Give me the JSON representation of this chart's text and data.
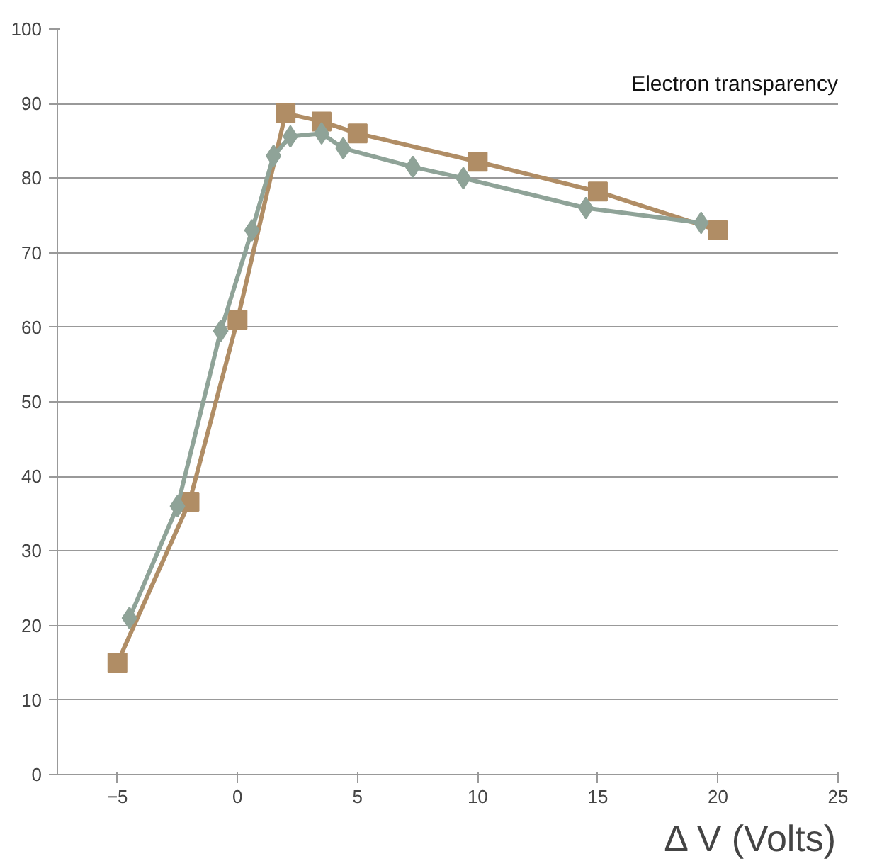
{
  "chart_data": {
    "type": "line",
    "xlabel": "Δ V (Volts)",
    "xlim": [
      -7.5,
      25
    ],
    "xticks": [
      -5,
      0,
      5,
      10,
      15,
      20,
      25
    ],
    "ylim": [
      0,
      100
    ],
    "yticks": [
      0,
      10,
      20,
      30,
      40,
      50,
      60,
      70,
      80,
      90,
      100
    ],
    "grid": "y",
    "line_style": "solid",
    "annotations": [
      "Electron transparency"
    ],
    "series": [
      {
        "color": "#b08d65",
        "marker": "square",
        "x": [
          -5,
          -2,
          0,
          2,
          3.5,
          5,
          10,
          15,
          20
        ],
        "values": [
          15,
          36.6,
          61,
          88.7,
          87.6,
          86,
          82.2,
          78.2,
          73
        ]
      },
      {
        "color": "#8fa398",
        "marker": "diamond",
        "x": [
          -4.5,
          -2.5,
          -0.7,
          0.6,
          1.5,
          2.2,
          3.5,
          4.4,
          7.3,
          9.4,
          14.5,
          19.3
        ],
        "values": [
          21,
          36,
          59.5,
          73,
          83,
          85.6,
          86,
          84,
          81.5,
          80,
          76,
          74
        ]
      }
    ]
  }
}
